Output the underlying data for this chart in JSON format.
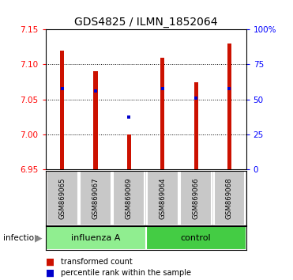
{
  "title": "GDS4825 / ILMN_1852064",
  "samples": [
    "GSM869065",
    "GSM869067",
    "GSM869069",
    "GSM869064",
    "GSM869066",
    "GSM869068"
  ],
  "group_labels": [
    "influenza A",
    "control"
  ],
  "bar_bottom": 6.95,
  "bar_tops": [
    7.12,
    7.09,
    7.0,
    7.11,
    7.075,
    7.13
  ],
  "blue_dots": [
    7.065,
    7.062,
    7.025,
    7.065,
    7.052,
    7.065
  ],
  "ylim_left": [
    6.95,
    7.15
  ],
  "yticks_left": [
    6.95,
    7.0,
    7.05,
    7.1,
    7.15
  ],
  "ylim_right": [
    0,
    100
  ],
  "yticks_right": [
    0,
    25,
    50,
    75,
    100
  ],
  "ytick_right_labels": [
    "0",
    "25",
    "50",
    "75",
    "100%"
  ],
  "grid_yticks": [
    7.0,
    7.05,
    7.1
  ],
  "bar_color": "#CC1100",
  "dot_color": "#0000CC",
  "label_box_color": "#C8C8C8",
  "influenza_box_color": "#90EE90",
  "control_box_color": "#44CC44",
  "sample_bg_color": "#D8D8D8",
  "group_bg_color": "#E8E8E8"
}
